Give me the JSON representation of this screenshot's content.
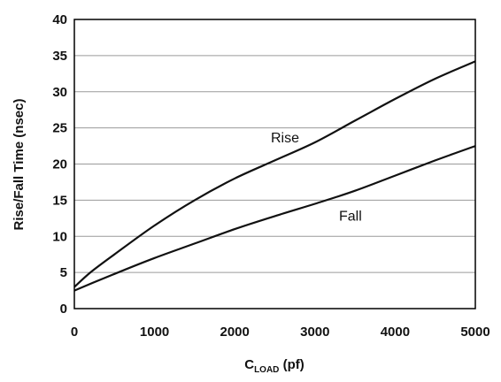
{
  "chart_data": {
    "type": "line",
    "title": "",
    "xlabel_main": "C",
    "xlabel_sub": "LOAD",
    "xlabel_unit": " (pf)",
    "ylabel": "Rise/Fall Time (nsec)",
    "xlim": [
      0,
      5000
    ],
    "ylim": [
      0,
      40
    ],
    "xticks": [
      0,
      1000,
      2000,
      3000,
      4000,
      5000
    ],
    "yticks": [
      0,
      5,
      10,
      15,
      20,
      25,
      30,
      35,
      40
    ],
    "grid": true,
    "series": [
      {
        "name": "Rise",
        "x": [
          0,
          200,
          500,
          1000,
          1500,
          2000,
          2500,
          3000,
          3500,
          4000,
          4500,
          5000
        ],
        "y": [
          3.0,
          5.0,
          7.5,
          11.5,
          15.0,
          18.0,
          20.5,
          23.0,
          26.0,
          29.0,
          31.8,
          34.2
        ]
      },
      {
        "name": "Fall",
        "x": [
          0,
          500,
          1000,
          1500,
          2000,
          2500,
          3000,
          3500,
          4000,
          4500,
          5000
        ],
        "y": [
          2.5,
          4.8,
          7.0,
          9.0,
          11.0,
          12.8,
          14.5,
          16.3,
          18.4,
          20.5,
          22.5
        ]
      }
    ],
    "annotations": [
      {
        "text": "Rise",
        "x": 2450,
        "y": 23.0
      },
      {
        "text": "Fall",
        "x": 3300,
        "y": 12.2
      }
    ]
  }
}
